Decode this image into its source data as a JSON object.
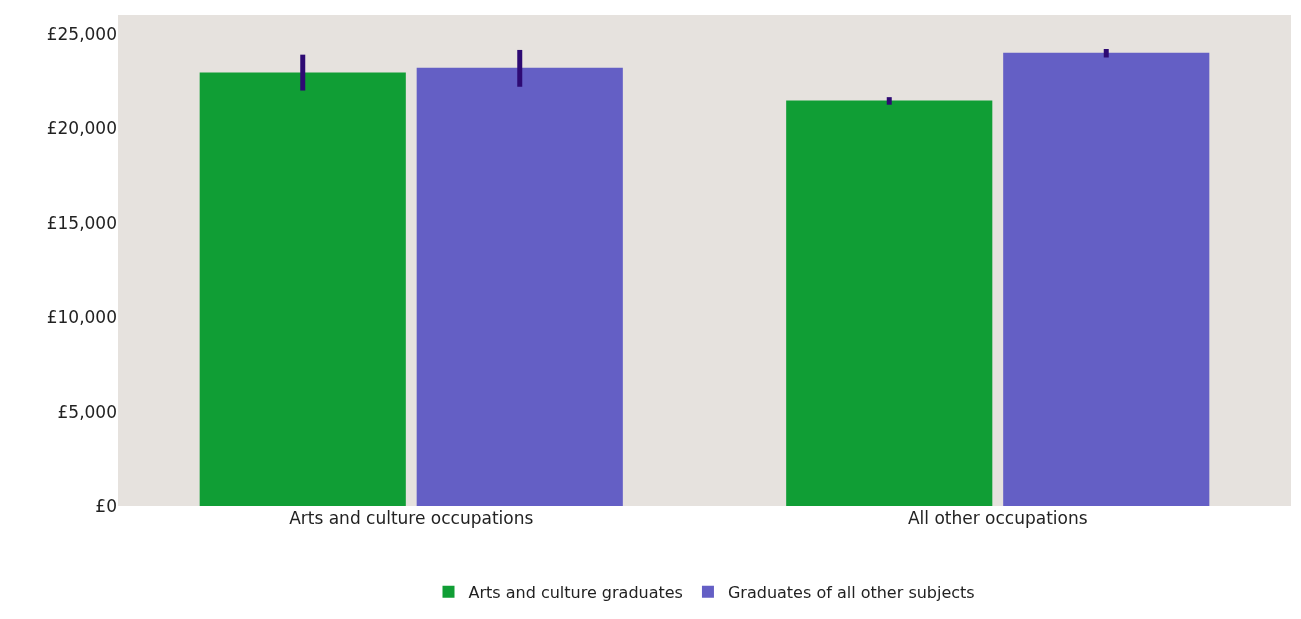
{
  "chart_data": {
    "type": "bar",
    "categories": [
      "Arts and culture occupations",
      "All other occupations"
    ],
    "series": [
      {
        "name": "Arts and culture graduates",
        "color": "#109e35",
        "values": [
          22950,
          21470
        ],
        "errors": [
          [
            22000,
            23900
          ],
          [
            21250,
            21650
          ]
        ]
      },
      {
        "name": "Graduates of all other subjects",
        "color": "#645fc5",
        "values": [
          23210,
          24000
        ],
        "errors": [
          [
            22200,
            24150
          ],
          [
            23750,
            24200
          ]
        ]
      }
    ],
    "ylim": [
      0,
      26000
    ],
    "yticks": [
      {
        "value": 0,
        "label": "£0"
      },
      {
        "value": 5000,
        "label": "£5,000"
      },
      {
        "value": 10000,
        "label": "£10,000"
      },
      {
        "value": 15000,
        "label": "£15,000"
      },
      {
        "value": 20000,
        "label": "£20,000"
      },
      {
        "value": 25000,
        "label": "£25,000"
      }
    ],
    "grid": false,
    "legend": "bottom"
  }
}
